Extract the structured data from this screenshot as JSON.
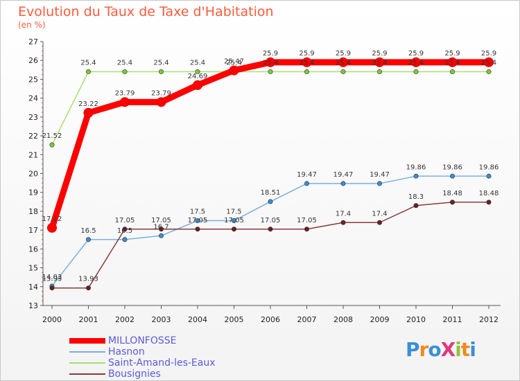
{
  "header": {
    "title": "Evolution du Taux de Taxe d'Habitation",
    "unit": "(en %)"
  },
  "logo": {
    "text": "ProXiti",
    "letters": [
      {
        "ch": "P",
        "color": "#3a8fd8"
      },
      {
        "ch": "r",
        "color": "#f08a1c"
      },
      {
        "ch": "o",
        "color": "#3a8fd8"
      },
      {
        "ch": "X",
        "color": "#e03a7a"
      },
      {
        "ch": "i",
        "color": "#8fc43a"
      },
      {
        "ch": "t",
        "color": "#f08a1c"
      },
      {
        "ch": "i",
        "color": "#3a8fd8"
      }
    ]
  },
  "chart_data": {
    "type": "line",
    "title": "Evolution du Taux de Taxe d'Habitation",
    "ylabel": "(en %)",
    "xlabel": "",
    "ylim": [
      13,
      27
    ],
    "yticks": [
      13,
      14,
      15,
      16,
      17,
      18,
      19,
      20,
      21,
      22,
      23,
      24,
      25,
      26,
      27
    ],
    "grid": false,
    "legend": "bottom-left",
    "x": [
      "2000",
      "2001",
      "2002",
      "2003",
      "2004",
      "2005",
      "2006",
      "2007",
      "2008",
      "2009",
      "2010",
      "2011",
      "2012"
    ],
    "series": [
      {
        "name": "MILLONFOSSE",
        "color": "#ff0000",
        "marker": "#ff0000",
        "values": [
          17.12,
          23.22,
          23.79,
          23.79,
          24.69,
          25.47,
          25.9,
          25.9,
          25.9,
          25.9,
          25.9,
          25.9,
          25.9
        ],
        "labels": [
          "17.12",
          "23.22",
          "23.79",
          "23.79",
          "24.69",
          "25.47",
          "25.9",
          "25.9",
          "25.9",
          "25.9",
          "25.9",
          "25.9",
          "25.9"
        ]
      },
      {
        "name": "Hasnon",
        "color": "#7ab0de",
        "marker": "#3d8ccc",
        "values": [
          14.03,
          16.5,
          16.5,
          16.7,
          17.5,
          17.5,
          18.51,
          19.47,
          19.47,
          19.47,
          19.86,
          19.86,
          19.86
        ],
        "labels": [
          "14.03",
          "16.5",
          "16.5",
          "16.7",
          "17.5",
          "17.5",
          "18.51",
          "19.47",
          "19.47",
          "19.47",
          "19.86",
          "19.86",
          "19.86"
        ]
      },
      {
        "name": "Saint-Amand-les-Eaux",
        "color": "#a8e070",
        "marker": "#7dc83c",
        "values": [
          21.52,
          25.4,
          25.4,
          25.4,
          25.4,
          25.4,
          25.4,
          25.4,
          25.4,
          25.4,
          25.4,
          25.4,
          25.4
        ],
        "labels": [
          "21.52",
          "25.4",
          "25.4",
          "25.4",
          "25.4",
          "25.4",
          "25.4",
          "25.4",
          "25.4",
          "25.4",
          "25.4",
          "25.4",
          "25.4"
        ]
      },
      {
        "name": "Bousignies",
        "color": "#8a3a3a",
        "marker": "#6a2020",
        "values": [
          13.93,
          13.93,
          17.05,
          17.05,
          17.05,
          17.05,
          17.05,
          17.05,
          17.4,
          17.4,
          18.3,
          18.48,
          18.48
        ],
        "labels": [
          "13.93",
          "13.93",
          "17.05",
          "17.05",
          "17.05",
          "17.05",
          "17.05",
          "17.05",
          "17.4",
          "17.4",
          "18.3",
          "18.48",
          "18.48"
        ]
      }
    ]
  }
}
